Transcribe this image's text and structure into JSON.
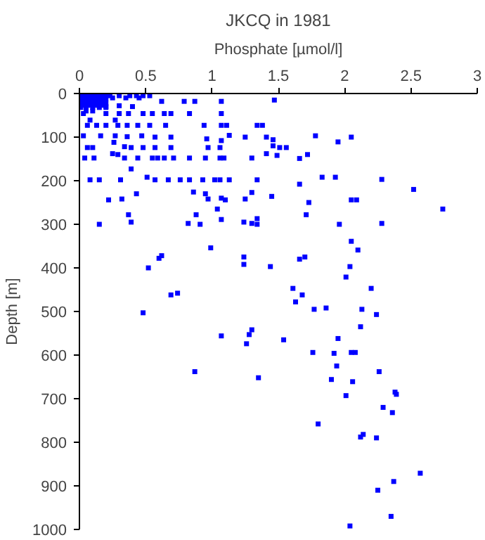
{
  "chart_data": {
    "type": "scatter",
    "title": "JKCQ in 1981",
    "xlabel": "Phosphate [µmol/l]",
    "ylabel": "Depth [m]",
    "xlim": [
      0,
      3
    ],
    "ylim": [
      1000,
      0
    ],
    "xticks": [
      0,
      0.5,
      1,
      1.5,
      2,
      2.5,
      3
    ],
    "yticks": [
      0,
      100,
      200,
      300,
      400,
      500,
      600,
      700,
      800,
      900,
      1000
    ],
    "grid": false,
    "marker": "square",
    "series": [
      {
        "color": "#0000ff",
        "x": [
          0.05,
          0.1,
          0.15,
          0.2,
          0.05,
          0.1,
          0.15,
          0.2,
          0.05,
          0.1,
          0.15,
          0.2,
          0.01,
          0.05,
          0.1,
          0.15,
          0.2,
          0.02,
          0.07,
          0.12,
          0.17,
          0.02,
          0.07,
          0.12,
          0.17,
          0.02,
          0.07,
          0.12,
          0.17,
          0.23,
          0.3,
          0.38,
          0.43,
          0.48,
          0.53,
          0.25,
          0.35,
          0.45,
          0.62,
          0.79,
          0.87,
          1.07,
          1.47,
          0.2,
          0.3,
          0.4,
          0.03,
          0.2,
          0.3,
          0.37,
          0.48,
          0.55,
          0.64,
          0.69,
          0.83,
          1.07,
          0.05,
          0.1,
          0.06,
          0.13,
          0.2,
          0.29,
          0.36,
          0.44,
          0.53,
          0.65,
          0.94,
          1.07,
          1.11,
          1.34,
          1.38,
          0.08,
          0.27,
          0.03,
          0.16,
          0.27,
          0.36,
          0.47,
          0.57,
          0.69,
          0.96,
          1.07,
          1.13,
          1.25,
          1.41,
          1.46,
          1.78,
          2.05,
          0.26,
          1.95,
          0.06,
          0.1,
          0.34,
          0.39,
          0.48,
          0.57,
          0.69,
          0.97,
          1.06,
          1.46,
          1.51,
          1.56,
          0.25,
          0.29,
          1.41,
          1.49,
          1.72,
          0.04,
          0.11,
          0.34,
          0.44,
          0.55,
          0.59,
          0.64,
          0.71,
          0.83,
          0.95,
          1.06,
          1.09,
          1.3,
          1.66,
          0.39,
          0.08,
          0.15,
          0.31,
          0.51,
          0.57,
          0.67,
          0.76,
          0.83,
          0.93,
          1.02,
          1.06,
          1.13,
          1.34,
          1.66,
          1.83,
          1.93,
          2.28,
          2.52,
          0.43,
          0.86,
          1.3,
          0.95,
          0.22,
          0.32,
          0.97,
          1.07,
          1.1,
          1.25,
          1.45,
          1.73,
          2.05,
          2.09,
          1.04,
          2.74,
          0.37,
          0.88,
          1.71,
          1.07,
          1.34,
          0.39,
          1.24,
          0.15,
          0.82,
          0.91,
          1.3,
          1.34,
          1.96,
          2.28,
          2.05,
          2.1,
          0.99,
          0.62,
          0.6,
          1.24,
          1.7,
          1.66,
          0.52,
          1.24,
          1.44,
          2.04,
          2.01,
          2.2,
          1.61,
          0.69,
          0.74,
          1.68,
          1.63,
          1.77,
          1.86,
          2.13,
          0.48,
          2.24,
          2.12,
          1.3,
          1.28,
          1.07,
          1.95,
          1.54,
          1.26,
          1.76,
          1.92,
          2.05,
          2.08,
          1.94,
          0.87,
          2.26,
          1.35,
          1.9,
          2.06,
          2.38,
          2.39,
          2.01,
          2.29,
          2.36,
          1.8,
          2.14,
          2.12,
          2.24,
          2.57,
          2.37,
          2.25,
          2.35,
          2.04
        ],
        "values": [
          2,
          2,
          2,
          2,
          12,
          12,
          12,
          12,
          22,
          22,
          22,
          22,
          32,
          32,
          32,
          32,
          32,
          7,
          7,
          7,
          7,
          17,
          17,
          17,
          17,
          27,
          27,
          27,
          27,
          5,
          5,
          5,
          5,
          5,
          5,
          10,
          10,
          10,
          18,
          18,
          18,
          18,
          15,
          30,
          28,
          30,
          46,
          46,
          46,
          46,
          46,
          46,
          46,
          46,
          46,
          46,
          40,
          40,
          73,
          73,
          73,
          73,
          73,
          73,
          73,
          73,
          73,
          73,
          73,
          73,
          73,
          61,
          61,
          97,
          97,
          97,
          99,
          97,
          100,
          100,
          104,
          108,
          96,
          100,
          100,
          106,
          97,
          100,
          112,
          111,
          124,
          124,
          122,
          124,
          124,
          124,
          124,
          124,
          124,
          120,
          124,
          124,
          138,
          140,
          138,
          142,
          140,
          148,
          148,
          148,
          148,
          148,
          148,
          148,
          148,
          148,
          148,
          148,
          148,
          148,
          149,
          173,
          198,
          198,
          198,
          192,
          198,
          198,
          198,
          198,
          198,
          198,
          198,
          198,
          198,
          208,
          192,
          192,
          197,
          220,
          230,
          226,
          227,
          230,
          244,
          242,
          242,
          240,
          244,
          242,
          236,
          250,
          244,
          244,
          265,
          265,
          278,
          278,
          278,
          289,
          287,
          295,
          295,
          300,
          298,
          300,
          298,
          300,
          300,
          298,
          339,
          359,
          354,
          372,
          378,
          375,
          375,
          380,
          400,
          392,
          397,
          397,
          421,
          447,
          447,
          462,
          458,
          462,
          478,
          495,
          492,
          495,
          503,
          507,
          535,
          542,
          553,
          556,
          562,
          565,
          574,
          594,
          596,
          594,
          594,
          625,
          638,
          638,
          652,
          656,
          661,
          685,
          690,
          693,
          720,
          732,
          758,
          782,
          788,
          790,
          871,
          890,
          910,
          970,
          992
        ]
      }
    ]
  }
}
